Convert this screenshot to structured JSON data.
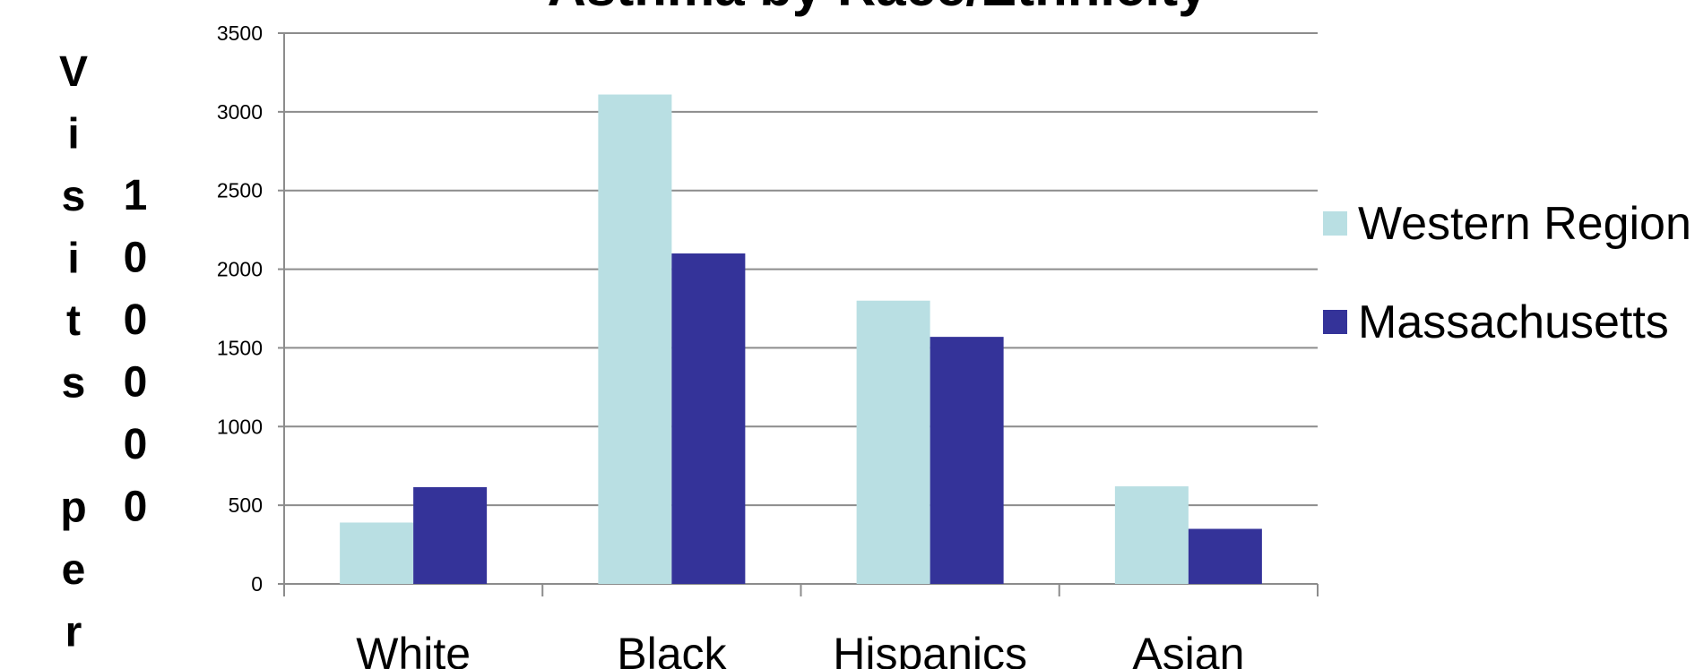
{
  "chart_data": {
    "type": "bar",
    "title": "Asthma by Race/Ethnicity",
    "ylabel_part1": "Visits per",
    "ylabel_part2": "100000",
    "categories": [
      "White",
      "Black",
      "Hispanics",
      "Asian"
    ],
    "series": [
      {
        "name": "Western Region",
        "color": "#b9dfe3",
        "values": [
          390,
          3110,
          1800,
          620
        ]
      },
      {
        "name": "Massachusetts",
        "color": "#343399",
        "values": [
          615,
          2100,
          1570,
          350
        ]
      }
    ],
    "ylim": [
      0,
      3500
    ],
    "yticks": [
      0,
      500,
      1000,
      1500,
      2000,
      2500,
      3000,
      3500
    ],
    "grid": true,
    "legend_position": "right"
  }
}
